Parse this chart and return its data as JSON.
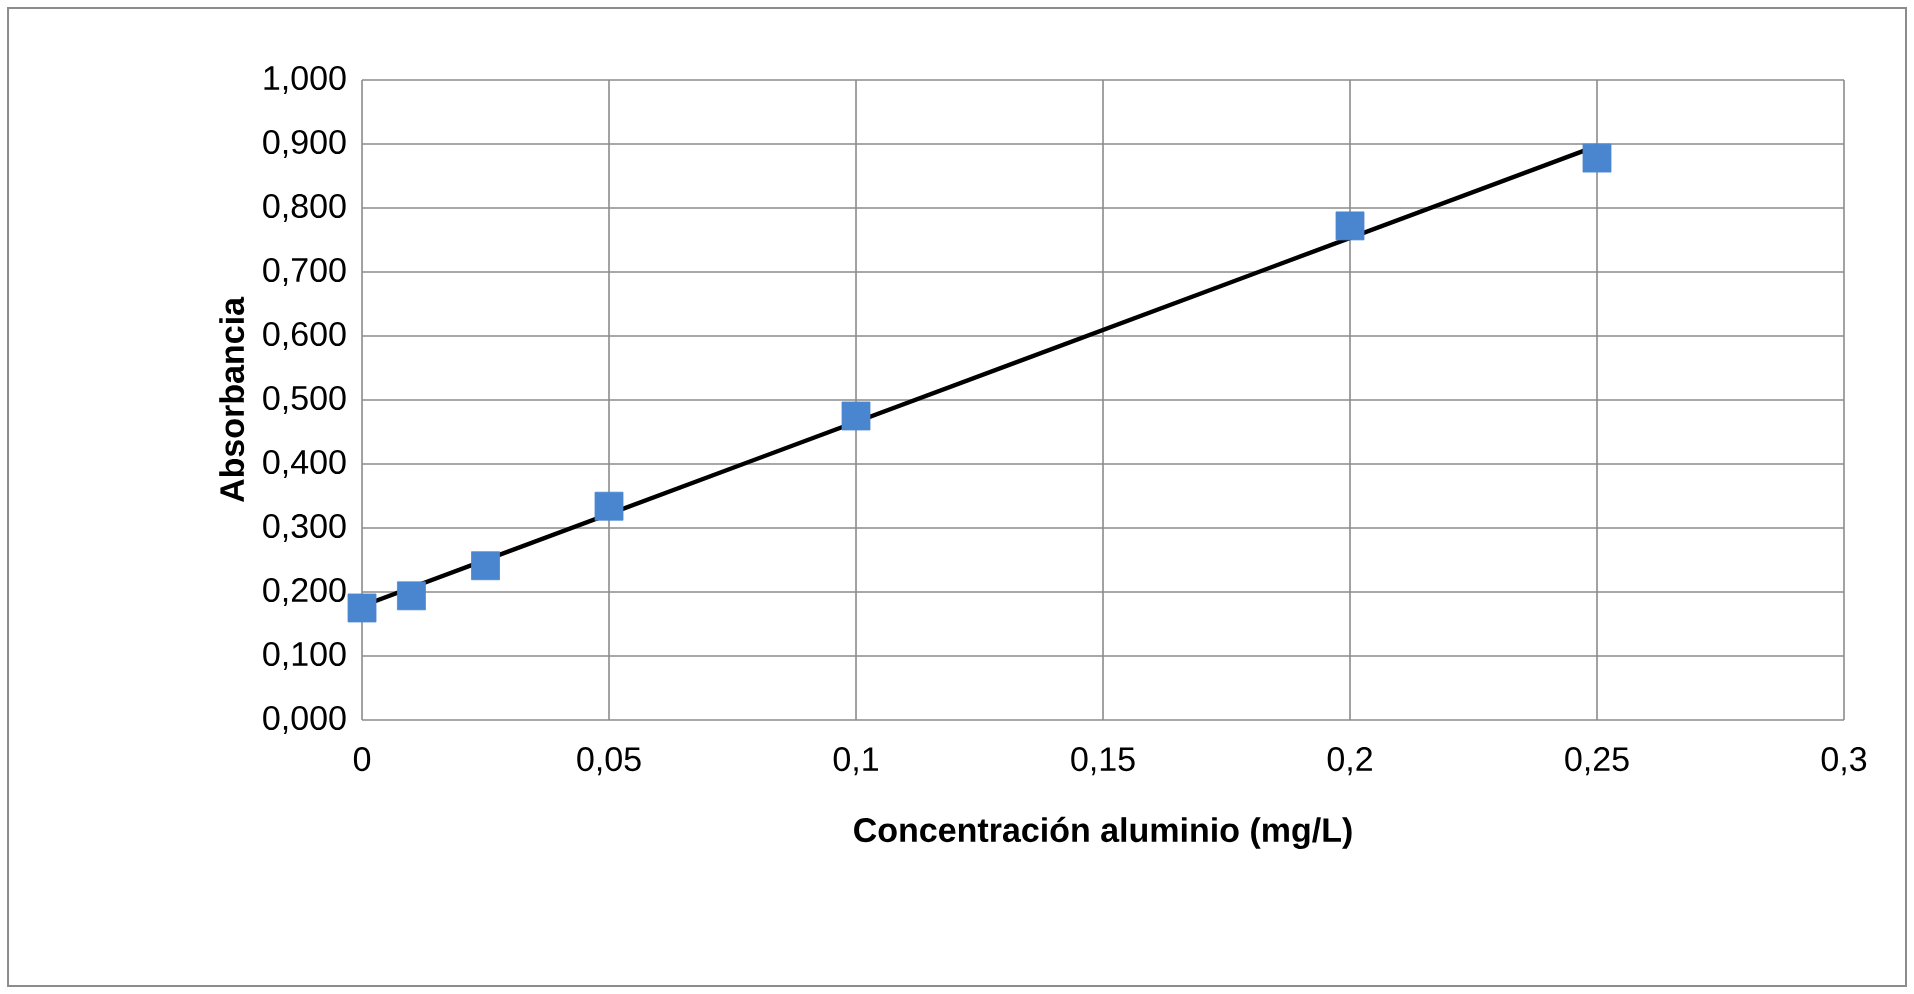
{
  "chart_data": {
    "type": "scatter",
    "xlabel": "Concentración aluminio (mg/L)",
    "ylabel": "Absorbancia",
    "x": [
      0,
      0.01,
      0.025,
      0.05,
      0.1,
      0.2,
      0.25
    ],
    "series": [
      {
        "color": "#4a86d0",
        "values": [
          0.175,
          0.194,
          0.241,
          0.334,
          0.475,
          0.772,
          0.878
        ]
      },
      {
        "type": "line",
        "color": "#000000",
        "marker": "none",
        "x": [
          0,
          0.25
        ],
        "values": [
          0.178,
          0.897
        ]
      }
    ],
    "marker": "square",
    "grid": true,
    "xlim": [
      0,
      0.3
    ],
    "ylim": [
      0,
      1
    ],
    "xticks": [
      0,
      {
        "value": 0.05,
        "label": "0,05"
      },
      {
        "value": 0.1,
        "label": "0,1"
      },
      {
        "value": 0.15,
        "label": "0,15"
      },
      {
        "value": 0.2,
        "label": "0,2"
      },
      {
        "value": 0.25,
        "label": "0,25"
      },
      {
        "value": 0.3,
        "label": "0,3"
      }
    ],
    "yticks": [
      {
        "value": 0,
        "label": "0,000"
      },
      {
        "value": 0.1,
        "label": "0,100"
      },
      {
        "value": 0.2,
        "label": "0,200"
      },
      {
        "value": 0.3,
        "label": "0,300"
      },
      {
        "value": 0.4,
        "label": "0,400"
      },
      {
        "value": 0.5,
        "label": "0,500"
      },
      {
        "value": 0.6,
        "label": "0,600"
      },
      {
        "value": 0.7,
        "label": "0,700"
      },
      {
        "value": 0.8,
        "label": "0,800"
      },
      {
        "value": 0.9,
        "label": "0,900"
      },
      {
        "value": 1,
        "label": "1,000"
      }
    ]
  }
}
